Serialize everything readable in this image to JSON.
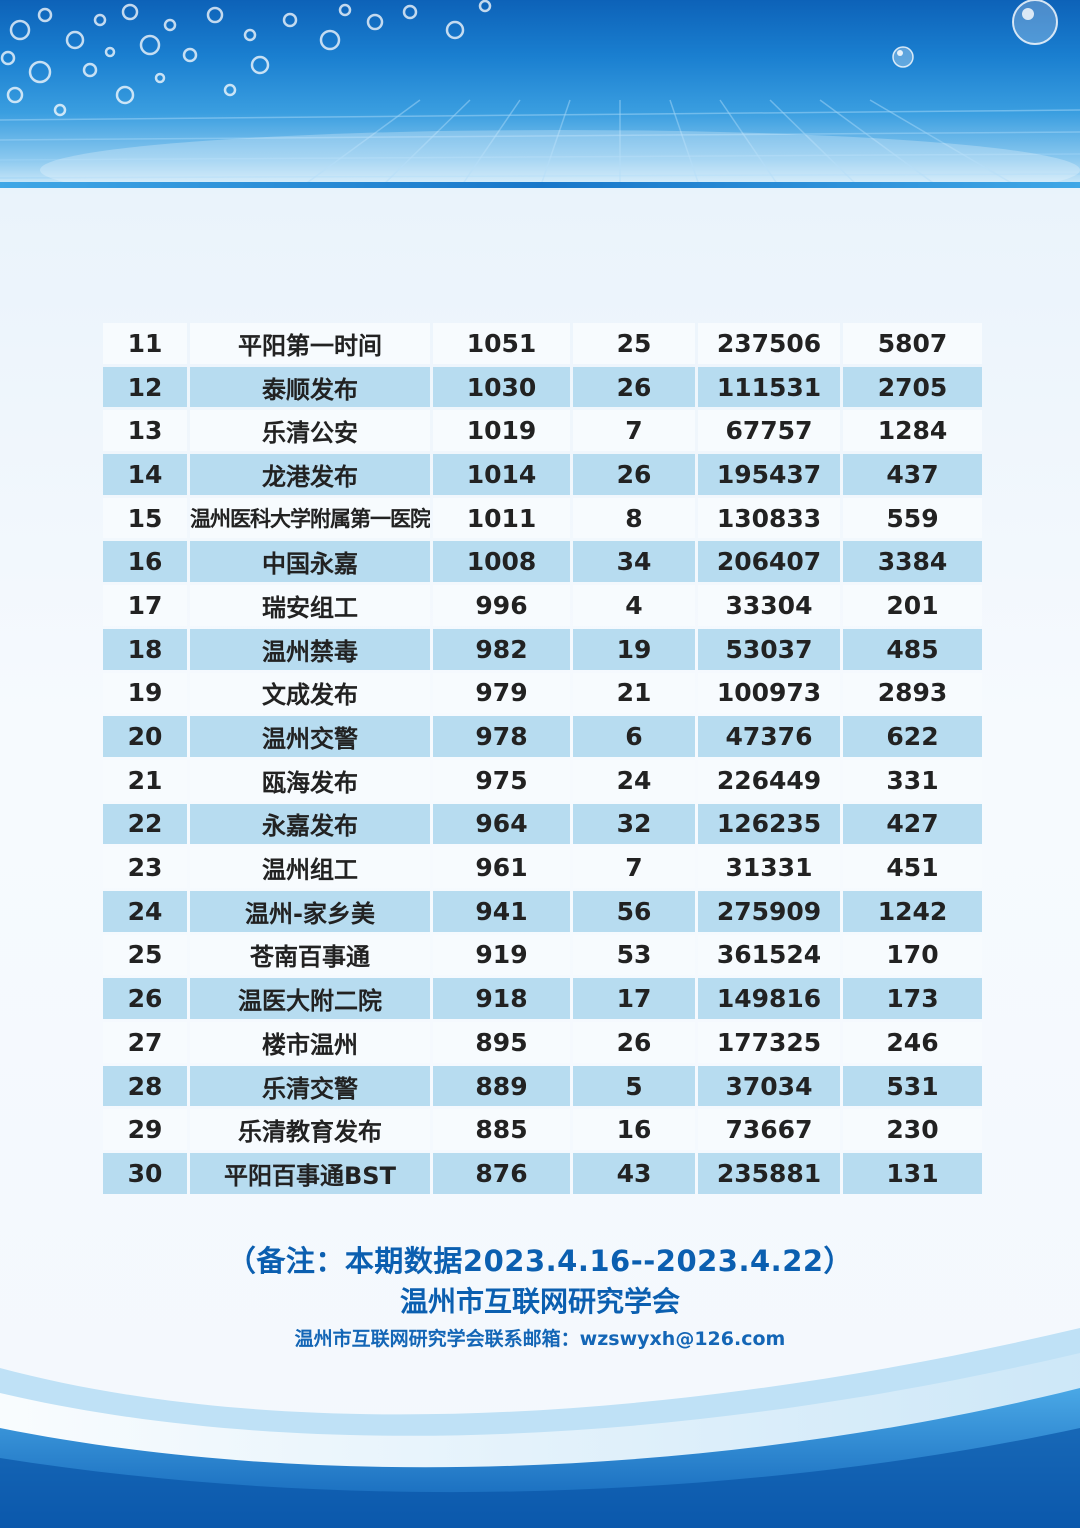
{
  "table": {
    "rows": [
      {
        "rank": "11",
        "name": "平阳第一时间",
        "c3": "1051",
        "c4": "25",
        "c5": "237506",
        "c6": "5807"
      },
      {
        "rank": "12",
        "name": "泰顺发布",
        "c3": "1030",
        "c4": "26",
        "c5": "111531",
        "c6": "2705"
      },
      {
        "rank": "13",
        "name": "乐清公安",
        "c3": "1019",
        "c4": "7",
        "c5": "67757",
        "c6": "1284"
      },
      {
        "rank": "14",
        "name": "龙港发布",
        "c3": "1014",
        "c4": "26",
        "c5": "195437",
        "c6": "437"
      },
      {
        "rank": "15",
        "name": "温州医科大学附属第一医院",
        "c3": "1011",
        "c4": "8",
        "c5": "130833",
        "c6": "559"
      },
      {
        "rank": "16",
        "name": "中国永嘉",
        "c3": "1008",
        "c4": "34",
        "c5": "206407",
        "c6": "3384"
      },
      {
        "rank": "17",
        "name": "瑞安组工",
        "c3": "996",
        "c4": "4",
        "c5": "33304",
        "c6": "201"
      },
      {
        "rank": "18",
        "name": "温州禁毒",
        "c3": "982",
        "c4": "19",
        "c5": "53037",
        "c6": "485"
      },
      {
        "rank": "19",
        "name": "文成发布",
        "c3": "979",
        "c4": "21",
        "c5": "100973",
        "c6": "2893"
      },
      {
        "rank": "20",
        "name": "温州交警",
        "c3": "978",
        "c4": "6",
        "c5": "47376",
        "c6": "622"
      },
      {
        "rank": "21",
        "name": "瓯海发布",
        "c3": "975",
        "c4": "24",
        "c5": "226449",
        "c6": "331"
      },
      {
        "rank": "22",
        "name": "永嘉发布",
        "c3": "964",
        "c4": "32",
        "c5": "126235",
        "c6": "427"
      },
      {
        "rank": "23",
        "name": "温州组工",
        "c3": "961",
        "c4": "7",
        "c5": "31331",
        "c6": "451"
      },
      {
        "rank": "24",
        "name": "温州-家乡美",
        "c3": "941",
        "c4": "56",
        "c5": "275909",
        "c6": "1242"
      },
      {
        "rank": "25",
        "name": "苍南百事通",
        "c3": "919",
        "c4": "53",
        "c5": "361524",
        "c6": "170"
      },
      {
        "rank": "26",
        "name": "温医大附二院",
        "c3": "918",
        "c4": "17",
        "c5": "149816",
        "c6": "173"
      },
      {
        "rank": "27",
        "name": "楼市温州",
        "c3": "895",
        "c4": "26",
        "c5": "177325",
        "c6": "246"
      },
      {
        "rank": "28",
        "name": "乐清交警",
        "c3": "889",
        "c4": "5",
        "c5": "37034",
        "c6": "531"
      },
      {
        "rank": "29",
        "name": "乐清教育发布",
        "c3": "885",
        "c4": "16",
        "c5": "73667",
        "c6": "230"
      },
      {
        "rank": "30",
        "name": "平阳百事通BST",
        "c3": "876",
        "c4": "43",
        "c5": "235881",
        "c6": "131"
      }
    ]
  },
  "footer": {
    "note": "（备注：本期数据2023.4.16--2023.4.22）",
    "organization": "温州市互联网研究学会",
    "contact": "温州市互联网研究学会联系邮箱：wzswyxh@126.com"
  },
  "colors": {
    "header_blue": "#1a7fd0",
    "row_light": "#f7fbfe",
    "row_blue": "#b7dcf0",
    "footer_text": "#0b5fb0"
  }
}
